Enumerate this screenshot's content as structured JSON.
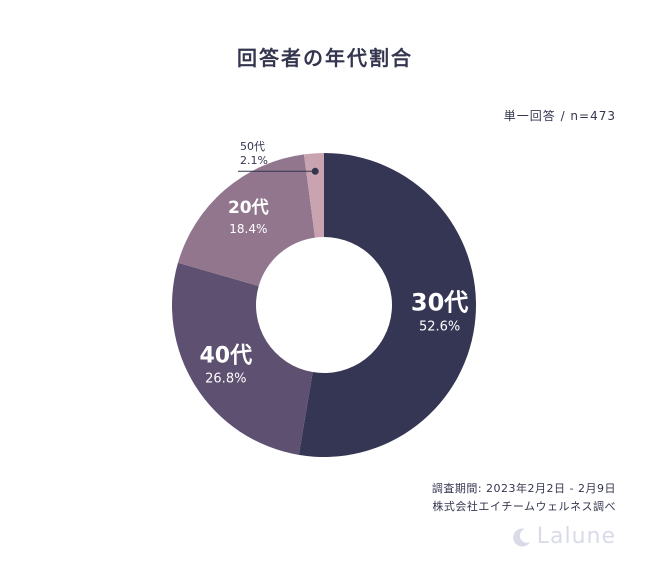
{
  "title": "回答者の年代割合",
  "note": "単一回答 / n=473",
  "chart_data": {
    "type": "pie",
    "title": "回答者の年代割合",
    "categories": [
      "30代",
      "40代",
      "20代",
      "50代"
    ],
    "values": [
      52.6,
      26.8,
      18.4,
      2.1
    ],
    "value_labels": [
      "52.6%",
      "26.8%",
      "18.4%",
      "2.1%"
    ],
    "colors": [
      "#343654",
      "#5e5070",
      "#91768e",
      "#c9a4b0"
    ],
    "donut": true,
    "start": "top (12 o'clock), clockwise"
  },
  "footer": {
    "line1": "調査期間: 2023年2月2日 - 2月9日",
    "line2": "株式会社エイチームウェルネス調べ"
  },
  "logo": {
    "text": "Lalune",
    "icon": "moon-icon"
  }
}
